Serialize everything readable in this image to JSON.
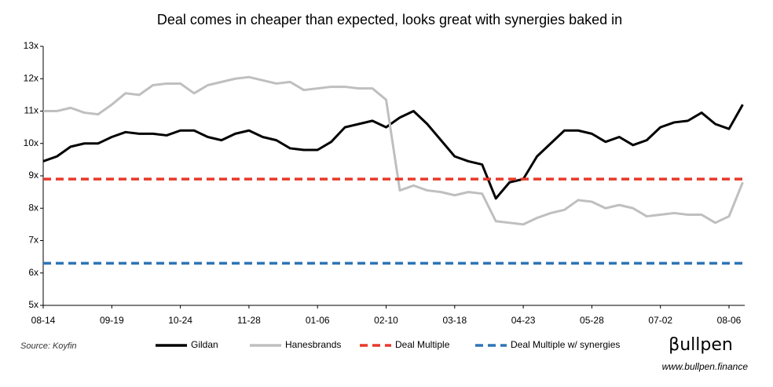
{
  "chart_data": {
    "type": "line",
    "title": "Deal comes in cheaper than expected, looks great with synergies baked in",
    "source": "Source: Koyfin",
    "brand": "βullpen",
    "url": "www.bullpen.finance",
    "categories": [
      "08-14",
      null,
      null,
      null,
      null,
      "09-19",
      null,
      null,
      null,
      null,
      "10-24",
      null,
      null,
      null,
      null,
      "11-28",
      null,
      null,
      null,
      null,
      "01-06",
      null,
      null,
      null,
      null,
      "02-10",
      null,
      null,
      null,
      null,
      "03-18",
      null,
      null,
      null,
      null,
      "04-23",
      null,
      null,
      null,
      null,
      "05-28",
      null,
      null,
      null,
      null,
      "07-02",
      null,
      null,
      null,
      null,
      "08-06",
      null
    ],
    "series": [
      {
        "name": "Gildan",
        "color": "#000000",
        "values": [
          9.45,
          9.6,
          9.9,
          10.0,
          10.0,
          10.2,
          10.35,
          10.3,
          10.3,
          10.25,
          10.4,
          10.4,
          10.2,
          10.1,
          10.3,
          10.4,
          10.2,
          10.1,
          9.85,
          9.8,
          9.8,
          10.05,
          10.5,
          10.6,
          10.7,
          10.5,
          10.8,
          11.0,
          10.6,
          10.1,
          9.6,
          9.45,
          9.35,
          8.3,
          8.8,
          8.9,
          9.6,
          10.0,
          10.4,
          10.4,
          10.3,
          10.05,
          10.2,
          9.95,
          10.1,
          10.5,
          10.65,
          10.7,
          10.95,
          10.6,
          10.45,
          11.2
        ]
      },
      {
        "name": "Hanesbrands",
        "color": "#bfbfbf",
        "values": [
          11.0,
          11.0,
          11.1,
          10.95,
          10.9,
          11.2,
          11.55,
          11.5,
          11.8,
          11.85,
          11.85,
          11.55,
          11.8,
          11.9,
          12.0,
          12.05,
          11.95,
          11.85,
          11.9,
          11.65,
          11.7,
          11.75,
          11.75,
          11.7,
          11.7,
          11.35,
          8.55,
          8.7,
          8.55,
          8.5,
          8.4,
          8.5,
          8.45,
          7.6,
          7.55,
          7.5,
          7.7,
          7.85,
          7.95,
          8.25,
          8.2,
          8.0,
          8.1,
          8.0,
          7.75,
          7.8,
          7.85,
          7.8,
          7.8,
          7.55,
          7.75,
          8.8
        ]
      },
      {
        "name": "Deal Multiple",
        "color": "#e8392a",
        "dashed": true,
        "value": 8.9
      },
      {
        "name": "Deal Multiple w/ synergies",
        "color": "#2e75b6",
        "dashed": true,
        "value": 6.3
      }
    ],
    "ylim": [
      5,
      13
    ],
    "yticks": [
      {
        "value": 5,
        "label": "5x"
      },
      {
        "value": 6,
        "label": "6x"
      },
      {
        "value": 7,
        "label": "7x"
      },
      {
        "value": 8,
        "label": "8x"
      },
      {
        "value": 9,
        "label": "9x"
      },
      {
        "value": 10,
        "label": "10x"
      },
      {
        "value": 11,
        "label": "11x"
      },
      {
        "value": 12,
        "label": "12x"
      },
      {
        "value": 13,
        "label": "13x"
      }
    ],
    "grid": false,
    "legend": "bottom"
  }
}
